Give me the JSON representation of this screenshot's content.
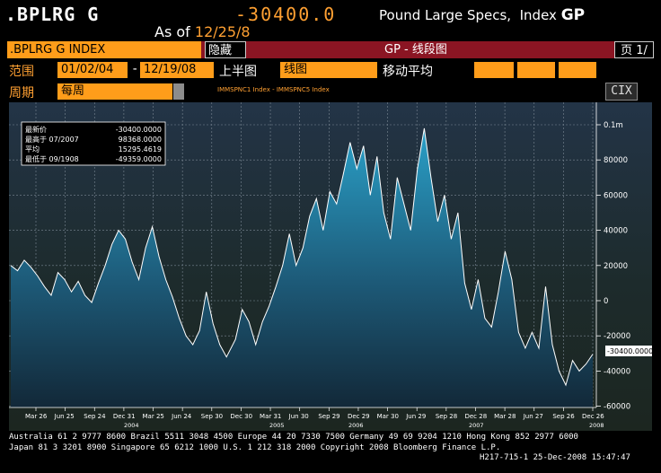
{
  "header": {
    "ticker": ".BPLRG  G",
    "last_value": "-30400.0",
    "description": "Pound Large Specs,",
    "index_label": "Index",
    "function": "GP",
    "as_of_label": "As of",
    "as_of_date": "12/25/8"
  },
  "toolbar": {
    "index_field": ".BPLRG G INDEX",
    "hide_button": "隐藏",
    "title": "GP - 线段图",
    "page": "页 1/"
  },
  "controls": {
    "range_label": "范围",
    "start_date": "01/02/04",
    "range_dash": "-",
    "end_date": "12/19/08",
    "upper_chart_label": "上半图",
    "upper_chart_value": "线图",
    "moving_avg_label": "移动平均",
    "period_label": "周期",
    "period_value": "每周",
    "cix_button": "CIX",
    "legend_text": "IMMSPNC1 Index - IMMSPNC5 Index"
  },
  "stats": [
    {
      "label": "最新价",
      "value": "-30400.0000"
    },
    {
      "label": "最高于 07/2007",
      "value": "98368.0000"
    },
    {
      "label": "平均",
      "value": "15295.4619"
    },
    {
      "label": "最低于 09/1908",
      "value": "-49359.0000"
    }
  ],
  "chart_data": {
    "type": "area",
    "series": [],
    "x_tick_labels": [
      "Mar 26",
      "Jun 25",
      "Sep 24",
      "Dec 31",
      "Mar 25",
      "Jun 24",
      "Sep 30",
      "Dec 30",
      "Mar 31",
      "Jun 30",
      "Sep 29",
      "Dec 29",
      "Mar 30",
      "Jun 29",
      "Sep 28",
      "Dec 28",
      "Mar 28",
      "Jun 27",
      "Sep 26",
      "Dec 26"
    ],
    "year_labels": [
      "2004",
      "2005",
      "2006",
      "2007",
      "2008"
    ],
    "y_tick_labels": [
      "0.1m",
      "80000",
      "60000",
      "40000",
      "20000",
      "0",
      "-20000",
      "-40000",
      "-60000"
    ],
    "last_value_label": "-30400.0000",
    "ylim": [
      -60000,
      100000
    ],
    "x_range": [
      "01/02/04",
      "12/19/08"
    ],
    "points": [
      [
        "2004-01-02",
        20000
      ],
      [
        "2004-01-23",
        17000
      ],
      [
        "2004-02-13",
        23000
      ],
      [
        "2004-03-05",
        19000
      ],
      [
        "2004-03-26",
        14000
      ],
      [
        "2004-04-16",
        8000
      ],
      [
        "2004-05-07",
        3000
      ],
      [
        "2004-05-28",
        16000
      ],
      [
        "2004-06-18",
        12000
      ],
      [
        "2004-07-09",
        5000
      ],
      [
        "2004-07-30",
        11000
      ],
      [
        "2004-08-20",
        3000
      ],
      [
        "2004-09-10",
        -1000
      ],
      [
        "2004-10-01",
        10000
      ],
      [
        "2004-10-22",
        20000
      ],
      [
        "2004-11-12",
        32000
      ],
      [
        "2004-12-03",
        40000
      ],
      [
        "2004-12-24",
        35000
      ],
      [
        "2005-01-14",
        22000
      ],
      [
        "2005-02-04",
        12000
      ],
      [
        "2005-02-25",
        30000
      ],
      [
        "2005-03-18",
        42000
      ],
      [
        "2005-04-08",
        25000
      ],
      [
        "2005-04-29",
        12000
      ],
      [
        "2005-05-20",
        2000
      ],
      [
        "2005-06-10",
        -10000
      ],
      [
        "2005-07-01",
        -20000
      ],
      [
        "2005-07-22",
        -25000
      ],
      [
        "2005-08-12",
        -17000
      ],
      [
        "2005-09-02",
        5000
      ],
      [
        "2005-09-23",
        -13000
      ],
      [
        "2005-10-14",
        -25000
      ],
      [
        "2005-11-04",
        -32000
      ],
      [
        "2005-12-02",
        -22000
      ],
      [
        "2005-12-23",
        -5000
      ],
      [
        "2006-01-13",
        -12000
      ],
      [
        "2006-02-03",
        -25000
      ],
      [
        "2006-02-24",
        -12000
      ],
      [
        "2006-03-17",
        -3000
      ],
      [
        "2006-04-07",
        8000
      ],
      [
        "2006-04-28",
        20000
      ],
      [
        "2006-05-19",
        38000
      ],
      [
        "2006-06-09",
        20000
      ],
      [
        "2006-06-30",
        30000
      ],
      [
        "2006-07-21",
        48000
      ],
      [
        "2006-08-11",
        58000
      ],
      [
        "2006-09-01",
        40000
      ],
      [
        "2006-09-22",
        62000
      ],
      [
        "2006-10-13",
        55000
      ],
      [
        "2006-11-03",
        72000
      ],
      [
        "2006-11-24",
        90000
      ],
      [
        "2006-12-15",
        75000
      ],
      [
        "2007-01-05",
        88000
      ],
      [
        "2007-01-26",
        60000
      ],
      [
        "2007-02-16",
        82000
      ],
      [
        "2007-03-09",
        50000
      ],
      [
        "2007-03-30",
        35000
      ],
      [
        "2007-04-20",
        70000
      ],
      [
        "2007-05-11",
        55000
      ],
      [
        "2007-06-01",
        40000
      ],
      [
        "2007-06-22",
        75000
      ],
      [
        "2007-07-13",
        98000
      ],
      [
        "2007-08-03",
        70000
      ],
      [
        "2007-08-24",
        45000
      ],
      [
        "2007-09-14",
        60000
      ],
      [
        "2007-10-05",
        35000
      ],
      [
        "2007-10-26",
        50000
      ],
      [
        "2007-11-16",
        10000
      ],
      [
        "2007-12-07",
        -5000
      ],
      [
        "2007-12-28",
        12000
      ],
      [
        "2008-01-18",
        -10000
      ],
      [
        "2008-02-08",
        -15000
      ],
      [
        "2008-02-29",
        5000
      ],
      [
        "2008-03-21",
        28000
      ],
      [
        "2008-04-11",
        12000
      ],
      [
        "2008-05-02",
        -18000
      ],
      [
        "2008-05-23",
        -27000
      ],
      [
        "2008-06-13",
        -18000
      ],
      [
        "2008-07-04",
        -27000
      ],
      [
        "2008-07-25",
        8000
      ],
      [
        "2008-08-15",
        -25000
      ],
      [
        "2008-09-05",
        -40000
      ],
      [
        "2008-09-26",
        -48000
      ],
      [
        "2008-10-17",
        -34000
      ],
      [
        "2008-11-07",
        -40000
      ],
      [
        "2008-11-28",
        -36000
      ],
      [
        "2008-12-19",
        -30400
      ]
    ]
  },
  "footer": {
    "line1": "Australia 61 2 9777 8600 Brazil 5511 3048 4500 Europe 44 20 7330 7500 Germany 49 69 9204 1210 Hong Kong 852 2977 6000",
    "line2": "Japan 81 3 3201 8900          Singapore 65 6212 1000          U.S. 1 212 318 2000          Copyright 2008 Bloomberg Finance L.P.",
    "line3": "H217-715-1 25-Dec-2008 15:47:47"
  },
  "colors": {
    "accent": "#ffa032",
    "orange_field": "#ff9d1a",
    "toolbar_red": "#8b1523",
    "area_top": "#2aa0c8",
    "area_bottom": "#122838"
  }
}
